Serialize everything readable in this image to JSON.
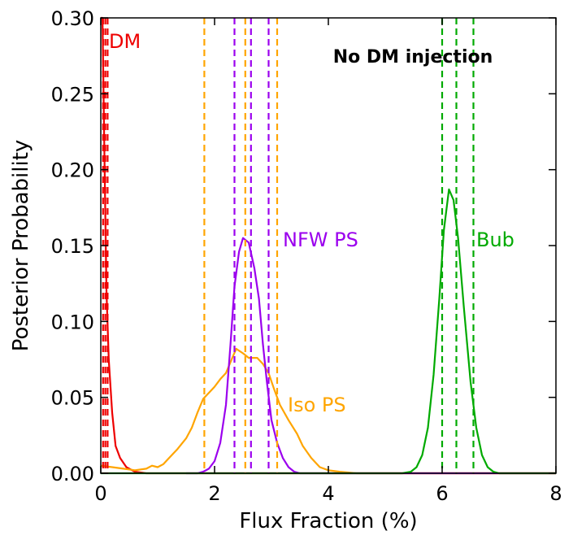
{
  "chart_data": {
    "type": "line",
    "title": "",
    "header_annotation": "No DM injection",
    "xlabel": "Flux Fraction (%)",
    "ylabel": "Posterior Probability",
    "xlim": [
      0,
      8
    ],
    "ylim": [
      0,
      0.3
    ],
    "xticks": [
      0,
      2,
      4,
      6,
      8
    ],
    "xtick_labels": [
      "0",
      "2",
      "4",
      "6",
      "8"
    ],
    "yticks": [
      0.0,
      0.05,
      0.1,
      0.15,
      0.2,
      0.25,
      0.3
    ],
    "ytick_labels": [
      "0.00",
      "0.05",
      "0.10",
      "0.15",
      "0.20",
      "0.25",
      "0.30"
    ],
    "grid": false,
    "series": [
      {
        "name": "DM",
        "label": "DM",
        "color": "#ee0000",
        "quantiles": [
          0.04,
          0.08,
          0.12
        ],
        "points": [
          [
            0.0,
            0.3
          ],
          [
            0.03,
            0.3
          ],
          [
            0.06,
            0.22
          ],
          [
            0.1,
            0.12
          ],
          [
            0.14,
            0.075
          ],
          [
            0.2,
            0.04
          ],
          [
            0.26,
            0.018
          ],
          [
            0.34,
            0.01
          ],
          [
            0.45,
            0.004
          ],
          [
            0.6,
            0.001
          ],
          [
            0.8,
            0.0
          ],
          [
            8.0,
            0.0
          ]
        ]
      },
      {
        "name": "Iso PS",
        "label": "Iso PS",
        "color": "#ffa500",
        "quantiles": [
          1.82,
          2.54,
          3.1
        ],
        "points": [
          [
            0.0,
            0.005
          ],
          [
            0.2,
            0.004
          ],
          [
            0.4,
            0.003
          ],
          [
            0.6,
            0.002
          ],
          [
            0.8,
            0.003
          ],
          [
            0.9,
            0.005
          ],
          [
            1.0,
            0.004
          ],
          [
            1.1,
            0.006
          ],
          [
            1.2,
            0.01
          ],
          [
            1.35,
            0.016
          ],
          [
            1.5,
            0.023
          ],
          [
            1.6,
            0.03
          ],
          [
            1.7,
            0.04
          ],
          [
            1.8,
            0.049
          ],
          [
            1.9,
            0.053
          ],
          [
            2.0,
            0.057
          ],
          [
            2.1,
            0.062
          ],
          [
            2.2,
            0.066
          ],
          [
            2.3,
            0.075
          ],
          [
            2.38,
            0.082
          ],
          [
            2.5,
            0.079
          ],
          [
            2.6,
            0.076
          ],
          [
            2.75,
            0.076
          ],
          [
            2.85,
            0.072
          ],
          [
            2.95,
            0.066
          ],
          [
            3.05,
            0.055
          ],
          [
            3.15,
            0.045
          ],
          [
            3.3,
            0.035
          ],
          [
            3.45,
            0.026
          ],
          [
            3.55,
            0.018
          ],
          [
            3.7,
            0.01
          ],
          [
            3.85,
            0.004
          ],
          [
            4.0,
            0.002
          ],
          [
            4.2,
            0.001
          ],
          [
            4.5,
            0.0
          ],
          [
            8.0,
            0.0
          ]
        ]
      },
      {
        "name": "NFW PS",
        "label": "NFW PS",
        "color": "#9b00ee",
        "quantiles": [
          2.35,
          2.64,
          2.95
        ],
        "points": [
          [
            1.5,
            0.0
          ],
          [
            1.7,
            0.0
          ],
          [
            1.8,
            0.001
          ],
          [
            1.9,
            0.003
          ],
          [
            2.0,
            0.008
          ],
          [
            2.1,
            0.02
          ],
          [
            2.2,
            0.045
          ],
          [
            2.28,
            0.085
          ],
          [
            2.35,
            0.123
          ],
          [
            2.43,
            0.146
          ],
          [
            2.5,
            0.155
          ],
          [
            2.6,
            0.152
          ],
          [
            2.7,
            0.135
          ],
          [
            2.78,
            0.115
          ],
          [
            2.85,
            0.085
          ],
          [
            2.92,
            0.06
          ],
          [
            3.0,
            0.035
          ],
          [
            3.1,
            0.02
          ],
          [
            3.2,
            0.01
          ],
          [
            3.3,
            0.004
          ],
          [
            3.4,
            0.001
          ],
          [
            3.5,
            0.0
          ],
          [
            4.0,
            0.0
          ],
          [
            8.0,
            0.0
          ]
        ]
      },
      {
        "name": "Bub",
        "label": "Bub",
        "color": "#00aa00",
        "quantiles": [
          6.0,
          6.25,
          6.55
        ],
        "points": [
          [
            0.0,
            0.0
          ],
          [
            5.0,
            0.0
          ],
          [
            5.3,
            0.0
          ],
          [
            5.45,
            0.001
          ],
          [
            5.55,
            0.004
          ],
          [
            5.65,
            0.012
          ],
          [
            5.75,
            0.03
          ],
          [
            5.85,
            0.065
          ],
          [
            5.95,
            0.115
          ],
          [
            6.03,
            0.16
          ],
          [
            6.12,
            0.187
          ],
          [
            6.2,
            0.18
          ],
          [
            6.28,
            0.155
          ],
          [
            6.38,
            0.11
          ],
          [
            6.5,
            0.06
          ],
          [
            6.6,
            0.03
          ],
          [
            6.7,
            0.012
          ],
          [
            6.8,
            0.004
          ],
          [
            6.9,
            0.001
          ],
          [
            7.0,
            0.0
          ],
          [
            8.0,
            0.0
          ]
        ]
      }
    ]
  }
}
